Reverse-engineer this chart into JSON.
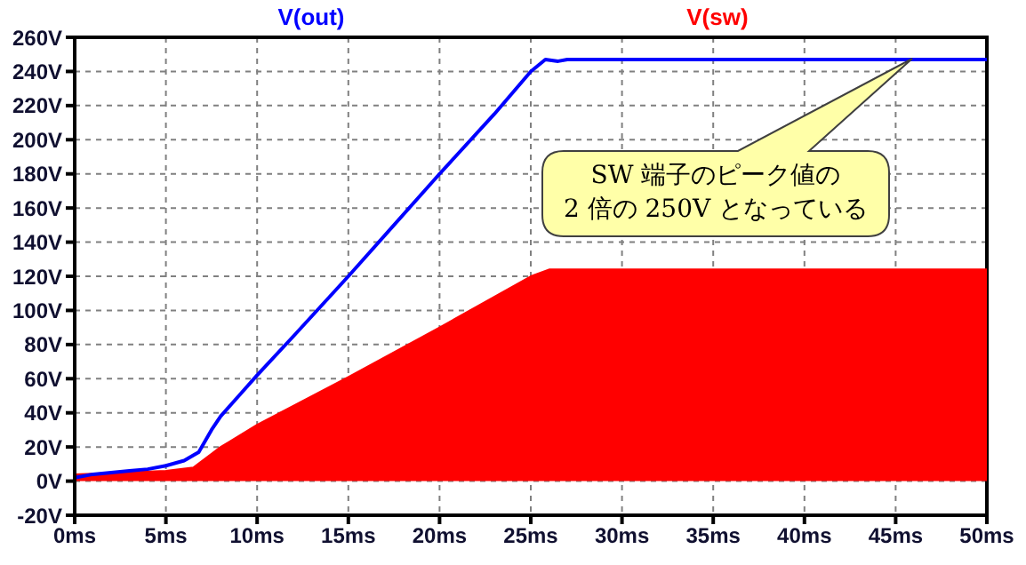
{
  "chart_data": {
    "type": "line",
    "legend": "top",
    "grid": true,
    "line_style": "solid",
    "marker": "none",
    "xlim": [
      0,
      50
    ],
    "ylim": [
      -20,
      260
    ],
    "xticks": [
      {
        "value": 0,
        "label": "0ms"
      },
      {
        "value": 5,
        "label": "5ms"
      },
      {
        "value": 10,
        "label": "10ms"
      },
      {
        "value": 15,
        "label": "15ms"
      },
      {
        "value": 20,
        "label": "20ms"
      },
      {
        "value": 25,
        "label": "25ms"
      },
      {
        "value": 30,
        "label": "30ms"
      },
      {
        "value": 35,
        "label": "35ms"
      },
      {
        "value": 40,
        "label": "40ms"
      },
      {
        "value": 45,
        "label": "45ms"
      },
      {
        "value": 50,
        "label": "50ms"
      }
    ],
    "yticks": [
      {
        "value": -20,
        "label": "-20V"
      },
      {
        "value": 0,
        "label": "0V"
      },
      {
        "value": 20,
        "label": "20V"
      },
      {
        "value": 40,
        "label": "40V"
      },
      {
        "value": 60,
        "label": "60V"
      },
      {
        "value": 80,
        "label": "80V"
      },
      {
        "value": 100,
        "label": "100V"
      },
      {
        "value": 120,
        "label": "120V"
      },
      {
        "value": 140,
        "label": "140V"
      },
      {
        "value": 160,
        "label": "160V"
      },
      {
        "value": 180,
        "label": "180V"
      },
      {
        "value": 200,
        "label": "200V"
      },
      {
        "value": 220,
        "label": "220V"
      },
      {
        "value": 240,
        "label": "240V"
      },
      {
        "value": 260,
        "label": "260V"
      }
    ],
    "series": [
      {
        "name": "V(out)",
        "color": "#0000ff",
        "x": [
          0,
          1,
          2,
          3,
          4,
          5,
          6,
          6.8,
          7.5,
          8,
          9,
          10,
          12,
          15,
          20,
          23,
          25,
          25.8,
          26.5,
          27,
          50
        ],
        "values": [
          2,
          4,
          5,
          6,
          7,
          9,
          12,
          17,
          30,
          38,
          50,
          62,
          85,
          120,
          180,
          215,
          240,
          247,
          246,
          247,
          247
        ]
      },
      {
        "name": "V(sw)",
        "type": "area",
        "color": "#ff0000",
        "x": [
          0,
          2.5,
          5,
          6.5,
          7,
          8,
          10,
          15,
          20,
          25,
          26,
          50
        ],
        "values": [
          4,
          5,
          6,
          8,
          12,
          20,
          33,
          61,
          90,
          120,
          124,
          124
        ]
      }
    ],
    "annotations": [
      "SW 端子のピーク値の\n2 倍の 250V となっている"
    ]
  }
}
